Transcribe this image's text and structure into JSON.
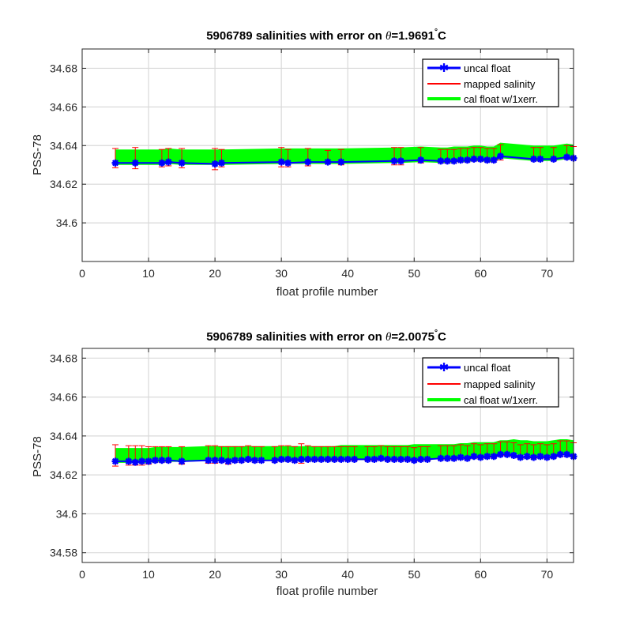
{
  "chart_data": [
    {
      "type": "line",
      "title_prefix": "5906789 salinities with error on ",
      "title_theta": "θ",
      "title_value": "=1.9691",
      "title_degree": "°",
      "title_unit": "C",
      "xlabel": "float profile number",
      "ylabel": "PSS-78",
      "xlim": [
        0,
        74
      ],
      "ylim": [
        34.58,
        34.69
      ],
      "xticks": [
        0,
        10,
        20,
        30,
        40,
        50,
        60,
        70
      ],
      "yticks": [
        34.6,
        34.62,
        34.64,
        34.66,
        34.68
      ],
      "ytick_labels": [
        "34.6",
        "34.62",
        "34.64",
        "34.66",
        "34.68"
      ],
      "grid": true,
      "legend_position": "top-right",
      "legend": [
        "uncal float",
        "mapped salinity",
        "cal float w/1xerr."
      ],
      "colors": {
        "uncal": "#0000ff",
        "mapped": "#ff0000",
        "cal": "#00ff00"
      },
      "band_err": 0.0038,
      "series": [
        {
          "name": "uncal float",
          "x": [
            5,
            8,
            12,
            13,
            15,
            20,
            21,
            30,
            31,
            34,
            37,
            39,
            47,
            48,
            51,
            54,
            55,
            56,
            57,
            58,
            59,
            60,
            61,
            62,
            63,
            68,
            69,
            71,
            73,
            74
          ],
          "values": [
            34.631,
            34.631,
            34.631,
            34.6315,
            34.631,
            34.6305,
            34.631,
            34.6315,
            34.631,
            34.6315,
            34.6315,
            34.6315,
            34.632,
            34.632,
            34.6325,
            34.632,
            34.632,
            34.632,
            34.6325,
            34.6325,
            34.633,
            34.633,
            34.6325,
            34.6325,
            34.6345,
            34.633,
            34.633,
            34.633,
            34.634,
            34.6335
          ]
        },
        {
          "name": "mapped salinity",
          "x": [
            5,
            8,
            12,
            13,
            15,
            20,
            21,
            30,
            31,
            34,
            37,
            39,
            47,
            48,
            51,
            54,
            55,
            56,
            57,
            58,
            59,
            60,
            61,
            62,
            63,
            68,
            69,
            71,
            73,
            74
          ],
          "values": [
            34.6335,
            34.6335,
            34.6335,
            34.634,
            34.6335,
            34.633,
            34.6335,
            34.634,
            34.6335,
            34.634,
            34.634,
            34.634,
            34.6345,
            34.6345,
            34.635,
            34.6345,
            34.6345,
            34.6345,
            34.635,
            34.635,
            34.6355,
            34.6355,
            34.635,
            34.635,
            34.6365,
            34.6355,
            34.6355,
            34.6355,
            34.6365,
            34.636
          ],
          "error": [
            0.005,
            0.0055,
            0.0045,
            0.0045,
            0.005,
            0.0055,
            0.0045,
            0.005,
            0.0045,
            0.0045,
            0.0035,
            0.004,
            0.0045,
            0.0045,
            0.004,
            0.0035,
            0.0035,
            0.0035,
            0.0035,
            0.0035,
            0.0035,
            0.0035,
            0.0035,
            0.0035,
            0.004,
            0.0035,
            0.0035,
            0.0035,
            0.0035,
            0.0035
          ]
        },
        {
          "name": "cal float w/1xerr.",
          "x": [
            5,
            8,
            12,
            13,
            15,
            20,
            21,
            30,
            31,
            34,
            37,
            39,
            47,
            48,
            51,
            54,
            55,
            56,
            57,
            58,
            59,
            60,
            61,
            62,
            63,
            68,
            69,
            71,
            73,
            74
          ],
          "values": [
            34.634,
            34.634,
            34.634,
            34.6345,
            34.634,
            34.634,
            34.634,
            34.6345,
            34.6345,
            34.6345,
            34.6345,
            34.6345,
            34.635,
            34.635,
            34.6355,
            34.635,
            34.635,
            34.6355,
            34.6355,
            34.6355,
            34.636,
            34.636,
            34.6355,
            34.6355,
            34.6375,
            34.636,
            34.636,
            34.636,
            34.637,
            34.6365
          ]
        }
      ]
    },
    {
      "type": "line",
      "title_prefix": "5906789 salinities with error on ",
      "title_theta": "θ",
      "title_value": "=2.0075",
      "title_degree": "°",
      "title_unit": "C",
      "xlabel": "float profile number",
      "ylabel": "PSS-78",
      "xlim": [
        0,
        74
      ],
      "ylim": [
        34.575,
        34.685
      ],
      "xticks": [
        0,
        10,
        20,
        30,
        40,
        50,
        60,
        70
      ],
      "yticks": [
        34.58,
        34.6,
        34.62,
        34.64,
        34.66,
        34.68
      ],
      "ytick_labels": [
        "34.58",
        "34.6",
        "34.62",
        "34.64",
        "34.66",
        "34.68"
      ],
      "grid": true,
      "legend_position": "top-right",
      "legend": [
        "uncal float",
        "mapped salinity",
        "cal float w/1xerr."
      ],
      "colors": {
        "uncal": "#0000ff",
        "mapped": "#ff0000",
        "cal": "#00ff00"
      },
      "band_err": 0.0036,
      "series": [
        {
          "name": "uncal float",
          "x": [
            5,
            7,
            8,
            9,
            10,
            11,
            12,
            13,
            15,
            19,
            20,
            21,
            22,
            23,
            24,
            25,
            26,
            27,
            29,
            30,
            31,
            32,
            33,
            34,
            35,
            36,
            37,
            38,
            39,
            40,
            41,
            43,
            44,
            45,
            46,
            47,
            48,
            49,
            50,
            51,
            52,
            54,
            55,
            56,
            57,
            58,
            59,
            60,
            61,
            62,
            63,
            64,
            65,
            66,
            67,
            68,
            69,
            70,
            71,
            72,
            73,
            74
          ],
          "values": [
            34.627,
            34.627,
            34.6265,
            34.627,
            34.627,
            34.6275,
            34.6275,
            34.6275,
            34.627,
            34.6275,
            34.6275,
            34.6275,
            34.627,
            34.6275,
            34.6275,
            34.628,
            34.6275,
            34.6275,
            34.6275,
            34.628,
            34.628,
            34.6275,
            34.628,
            34.628,
            34.628,
            34.628,
            34.628,
            34.628,
            34.628,
            34.628,
            34.628,
            34.628,
            34.628,
            34.6285,
            34.628,
            34.628,
            34.628,
            34.628,
            34.6275,
            34.628,
            34.628,
            34.6285,
            34.6285,
            34.6285,
            34.629,
            34.6285,
            34.6295,
            34.629,
            34.6295,
            34.6295,
            34.6305,
            34.6305,
            34.63,
            34.629,
            34.6295,
            34.629,
            34.6295,
            34.629,
            34.6295,
            34.6305,
            34.6305,
            34.6295
          ]
        },
        {
          "name": "mapped salinity",
          "x": [
            5,
            7,
            8,
            9,
            10,
            11,
            12,
            13,
            15,
            19,
            20,
            21,
            22,
            23,
            24,
            25,
            26,
            27,
            29,
            30,
            31,
            32,
            33,
            34,
            35,
            36,
            37,
            38,
            39,
            40,
            41,
            43,
            44,
            45,
            46,
            47,
            48,
            49,
            50,
            51,
            52,
            54,
            55,
            56,
            57,
            58,
            59,
            60,
            61,
            62,
            63,
            64,
            65,
            66,
            67,
            68,
            69,
            70,
            71,
            72,
            73,
            74
          ],
          "values": [
            34.63,
            34.63,
            34.63,
            34.63,
            34.63,
            34.6305,
            34.6305,
            34.6305,
            34.63,
            34.6305,
            34.6305,
            34.6305,
            34.63,
            34.6305,
            34.6305,
            34.631,
            34.6305,
            34.6305,
            34.6305,
            34.631,
            34.631,
            34.6305,
            34.631,
            34.631,
            34.631,
            34.631,
            34.631,
            34.631,
            34.631,
            34.631,
            34.631,
            34.631,
            34.631,
            34.6315,
            34.631,
            34.631,
            34.631,
            34.631,
            34.6305,
            34.631,
            34.631,
            34.6315,
            34.6315,
            34.6315,
            34.632,
            34.6315,
            34.6325,
            34.632,
            34.6325,
            34.6325,
            34.6335,
            34.6335,
            34.633,
            34.632,
            34.6325,
            34.632,
            34.6325,
            34.632,
            34.6325,
            34.6335,
            34.6335,
            34.6325
          ],
          "error": [
            0.0055,
            0.005,
            0.005,
            0.005,
            0.0045,
            0.004,
            0.004,
            0.004,
            0.0045,
            0.0045,
            0.0045,
            0.004,
            0.0045,
            0.004,
            0.004,
            0.004,
            0.004,
            0.004,
            0.004,
            0.004,
            0.004,
            0.004,
            0.005,
            0.004,
            0.0035,
            0.0035,
            0.0035,
            0.0035,
            0.0035,
            0.0035,
            0.0035,
            0.0035,
            0.0035,
            0.0035,
            0.0035,
            0.0035,
            0.0035,
            0.0035,
            0.0035,
            0.0035,
            0.0035,
            0.0035,
            0.0035,
            0.0035,
            0.0035,
            0.0035,
            0.0035,
            0.0035,
            0.0035,
            0.0035,
            0.0035,
            0.0035,
            0.0035,
            0.0035,
            0.0035,
            0.0035,
            0.0035,
            0.0035,
            0.0035,
            0.004,
            0.004,
            0.004
          ]
        },
        {
          "name": "cal float w/1xerr.",
          "x": [
            5,
            7,
            8,
            9,
            10,
            11,
            12,
            13,
            15,
            19,
            20,
            21,
            22,
            23,
            24,
            25,
            26,
            27,
            29,
            30,
            31,
            32,
            33,
            34,
            35,
            36,
            37,
            38,
            39,
            40,
            41,
            43,
            44,
            45,
            46,
            47,
            48,
            49,
            50,
            51,
            52,
            54,
            55,
            56,
            57,
            58,
            59,
            60,
            61,
            62,
            63,
            64,
            65,
            66,
            67,
            68,
            69,
            70,
            71,
            72,
            73,
            74
          ],
          "values": [
            34.63,
            34.63,
            34.63,
            34.63,
            34.63,
            34.6305,
            34.6305,
            34.6305,
            34.6305,
            34.631,
            34.631,
            34.631,
            34.631,
            34.631,
            34.631,
            34.631,
            34.631,
            34.631,
            34.631,
            34.631,
            34.631,
            34.631,
            34.631,
            34.631,
            34.631,
            34.631,
            34.631,
            34.631,
            34.6315,
            34.6315,
            34.6315,
            34.6315,
            34.6315,
            34.6315,
            34.6315,
            34.6315,
            34.6315,
            34.6315,
            34.632,
            34.632,
            34.632,
            34.632,
            34.632,
            34.632,
            34.6325,
            34.6325,
            34.633,
            34.633,
            34.633,
            34.633,
            34.634,
            34.634,
            34.6345,
            34.634,
            34.634,
            34.6335,
            34.6335,
            34.6335,
            34.634,
            34.6345,
            34.6345,
            34.634
          ]
        }
      ]
    }
  ]
}
